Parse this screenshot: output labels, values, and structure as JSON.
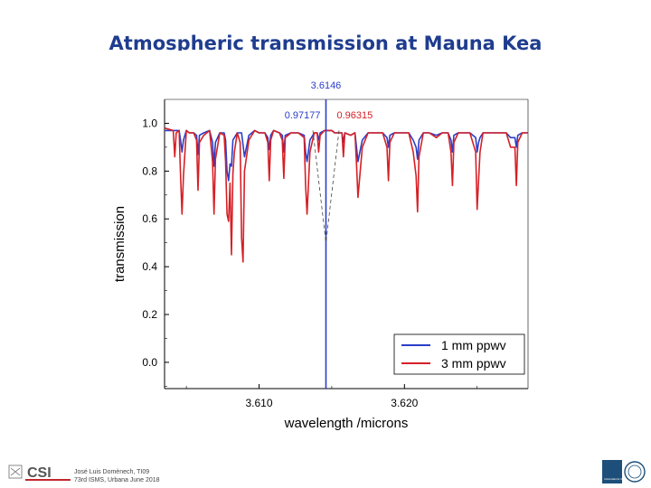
{
  "slide": {
    "title": "Atmospheric transmission at Mauna Kea"
  },
  "footer": {
    "line1": "José Luis Domènech, TI09",
    "line2": "73rd ISMS,  Urbana June 2018",
    "logo_left_text": "CSI",
    "logo_right_text": "Universidad de Valladolid"
  },
  "chart_data": {
    "type": "line",
    "title": "",
    "xlabel": "wavelength /microns",
    "ylabel": "transmission",
    "xlim": [
      3.6035,
      3.6285
    ],
    "ylim": [
      -0.11,
      1.1
    ],
    "x_ticks": [
      3.61,
      3.62
    ],
    "x_tick_labels": [
      "3.610",
      "3.620"
    ],
    "y_ticks": [
      0.0,
      0.2,
      0.4,
      0.6,
      0.8,
      1.0
    ],
    "y_tick_labels": [
      "0.0",
      "0.2",
      "0.4",
      "0.6",
      "0.8",
      "1.0"
    ],
    "legend_position": "bottom-right",
    "series": [
      {
        "name": "1 mm ppwv",
        "color": "#2a3ec9",
        "x": [
          3.6035,
          3.6045,
          3.6046,
          3.6047,
          3.6048,
          3.605,
          3.6052,
          3.6055,
          3.6057,
          3.6058,
          3.6059,
          3.6062,
          3.6066,
          3.6068,
          3.6069,
          3.607,
          3.6073,
          3.6076,
          3.6077,
          3.6078,
          3.6079,
          3.608,
          3.6081,
          3.6082,
          3.6085,
          3.6088,
          3.6089,
          3.609,
          3.6093,
          3.6097,
          3.61,
          3.6104,
          3.6106,
          3.6107,
          3.6108,
          3.611,
          3.6114,
          3.6116,
          3.6117,
          3.6118,
          3.6122,
          3.6127,
          3.6131,
          3.6132,
          3.6133,
          3.6135,
          3.6138,
          3.614,
          3.6141,
          3.6142,
          3.6145,
          3.615,
          3.6152,
          3.6154,
          3.6157,
          3.6158,
          3.6159,
          3.6163,
          3.6166,
          3.6167,
          3.6168,
          3.6171,
          3.6175,
          3.618,
          3.6185,
          3.6188,
          3.6189,
          3.619,
          3.6193,
          3.6197,
          3.62,
          3.6203,
          3.6206,
          3.6208,
          3.6209,
          3.621,
          3.6213,
          3.6217,
          3.6222,
          3.6226,
          3.623,
          3.6232,
          3.6233,
          3.6234,
          3.6237,
          3.624,
          3.6245,
          3.6249,
          3.625,
          3.6251,
          3.6252,
          3.6254,
          3.6258,
          3.6262,
          3.6266,
          3.627,
          3.6273,
          3.6276,
          3.6277,
          3.6278,
          3.6281,
          3.6285
        ],
        "y": [
          0.97,
          0.97,
          0.93,
          0.88,
          0.93,
          0.97,
          0.96,
          0.96,
          0.95,
          0.87,
          0.95,
          0.96,
          0.97,
          0.92,
          0.82,
          0.92,
          0.96,
          0.96,
          0.93,
          0.8,
          0.76,
          0.83,
          0.82,
          0.93,
          0.96,
          0.96,
          0.91,
          0.86,
          0.95,
          0.97,
          0.96,
          0.96,
          0.94,
          0.89,
          0.95,
          0.97,
          0.96,
          0.95,
          0.88,
          0.95,
          0.96,
          0.96,
          0.95,
          0.88,
          0.84,
          0.93,
          0.96,
          0.96,
          0.93,
          0.96,
          0.97,
          0.97,
          0.96,
          0.96,
          0.96,
          0.92,
          0.96,
          0.95,
          0.96,
          0.9,
          0.84,
          0.93,
          0.96,
          0.96,
          0.96,
          0.94,
          0.9,
          0.95,
          0.96,
          0.96,
          0.96,
          0.96,
          0.93,
          0.9,
          0.85,
          0.93,
          0.96,
          0.96,
          0.95,
          0.96,
          0.96,
          0.93,
          0.88,
          0.95,
          0.96,
          0.96,
          0.96,
          0.94,
          0.88,
          0.92,
          0.94,
          0.96,
          0.96,
          0.96,
          0.96,
          0.96,
          0.94,
          0.94,
          0.9,
          0.95,
          0.96,
          0.96
        ]
      },
      {
        "name": "3 mm ppwv",
        "color": "#d62026",
        "x": [
          3.6035,
          3.6041,
          3.6042,
          3.6043,
          3.6045,
          3.6046,
          3.6047,
          3.6048,
          3.605,
          3.6052,
          3.6055,
          3.6057,
          3.6058,
          3.6059,
          3.6062,
          3.6066,
          3.6068,
          3.6069,
          3.607,
          3.6073,
          3.6076,
          3.6077,
          3.6078,
          3.6079,
          3.608,
          3.6081,
          3.6082,
          3.6083,
          3.6085,
          3.6087,
          3.6088,
          3.6089,
          3.609,
          3.6093,
          3.6097,
          3.61,
          3.6104,
          3.6106,
          3.6107,
          3.6108,
          3.611,
          3.6114,
          3.6116,
          3.6117,
          3.6118,
          3.6122,
          3.6127,
          3.6131,
          3.6132,
          3.6133,
          3.6135,
          3.6138,
          3.614,
          3.6141,
          3.6142,
          3.6145,
          3.615,
          3.6152,
          3.6154,
          3.6157,
          3.6158,
          3.6159,
          3.6163,
          3.6166,
          3.6167,
          3.6168,
          3.6171,
          3.6175,
          3.618,
          3.6185,
          3.6188,
          3.6189,
          3.619,
          3.6193,
          3.6197,
          3.62,
          3.6203,
          3.6206,
          3.6208,
          3.6209,
          3.621,
          3.6213,
          3.6217,
          3.6222,
          3.6226,
          3.623,
          3.6232,
          3.6233,
          3.6234,
          3.6237,
          3.624,
          3.6245,
          3.6249,
          3.625,
          3.6251,
          3.6252,
          3.6254,
          3.6258,
          3.6262,
          3.6266,
          3.627,
          3.6273,
          3.6276,
          3.6277,
          3.6278,
          3.6281,
          3.6285
        ],
        "y": [
          0.98,
          0.97,
          0.86,
          0.96,
          0.97,
          0.78,
          0.62,
          0.78,
          0.97,
          0.96,
          0.96,
          0.93,
          0.72,
          0.92,
          0.95,
          0.97,
          0.84,
          0.62,
          0.85,
          0.96,
          0.95,
          0.84,
          0.62,
          0.59,
          0.75,
          0.45,
          0.79,
          0.88,
          0.96,
          0.92,
          0.52,
          0.42,
          0.8,
          0.93,
          0.97,
          0.96,
          0.96,
          0.92,
          0.76,
          0.93,
          0.97,
          0.96,
          0.93,
          0.77,
          0.94,
          0.96,
          0.96,
          0.94,
          0.74,
          0.62,
          0.88,
          0.96,
          0.96,
          0.88,
          0.95,
          0.97,
          0.97,
          0.96,
          0.96,
          0.96,
          0.86,
          0.96,
          0.95,
          0.96,
          0.83,
          0.69,
          0.9,
          0.96,
          0.96,
          0.96,
          0.9,
          0.76,
          0.92,
          0.96,
          0.96,
          0.96,
          0.96,
          0.88,
          0.78,
          0.63,
          0.86,
          0.96,
          0.96,
          0.94,
          0.96,
          0.96,
          0.88,
          0.74,
          0.92,
          0.96,
          0.96,
          0.96,
          0.88,
          0.64,
          0.76,
          0.88,
          0.96,
          0.96,
          0.96,
          0.96,
          0.96,
          0.9,
          0.9,
          0.74,
          0.92,
          0.96,
          0.96
        ]
      }
    ],
    "annotations": {
      "cursor_x": 3.6146,
      "cursor_label": "3.6146",
      "cursor_color": "#2a3ec9",
      "value_labels": [
        "0.97177",
        "0.96315"
      ],
      "value_label_colors": [
        "#2a3ec9",
        "#d62026"
      ],
      "dashed_vertex": [
        3.6146,
        0.5
      ],
      "dashed_ends_x": [
        3.6137,
        3.6155
      ],
      "dashed_ends_y": 0.97
    }
  }
}
